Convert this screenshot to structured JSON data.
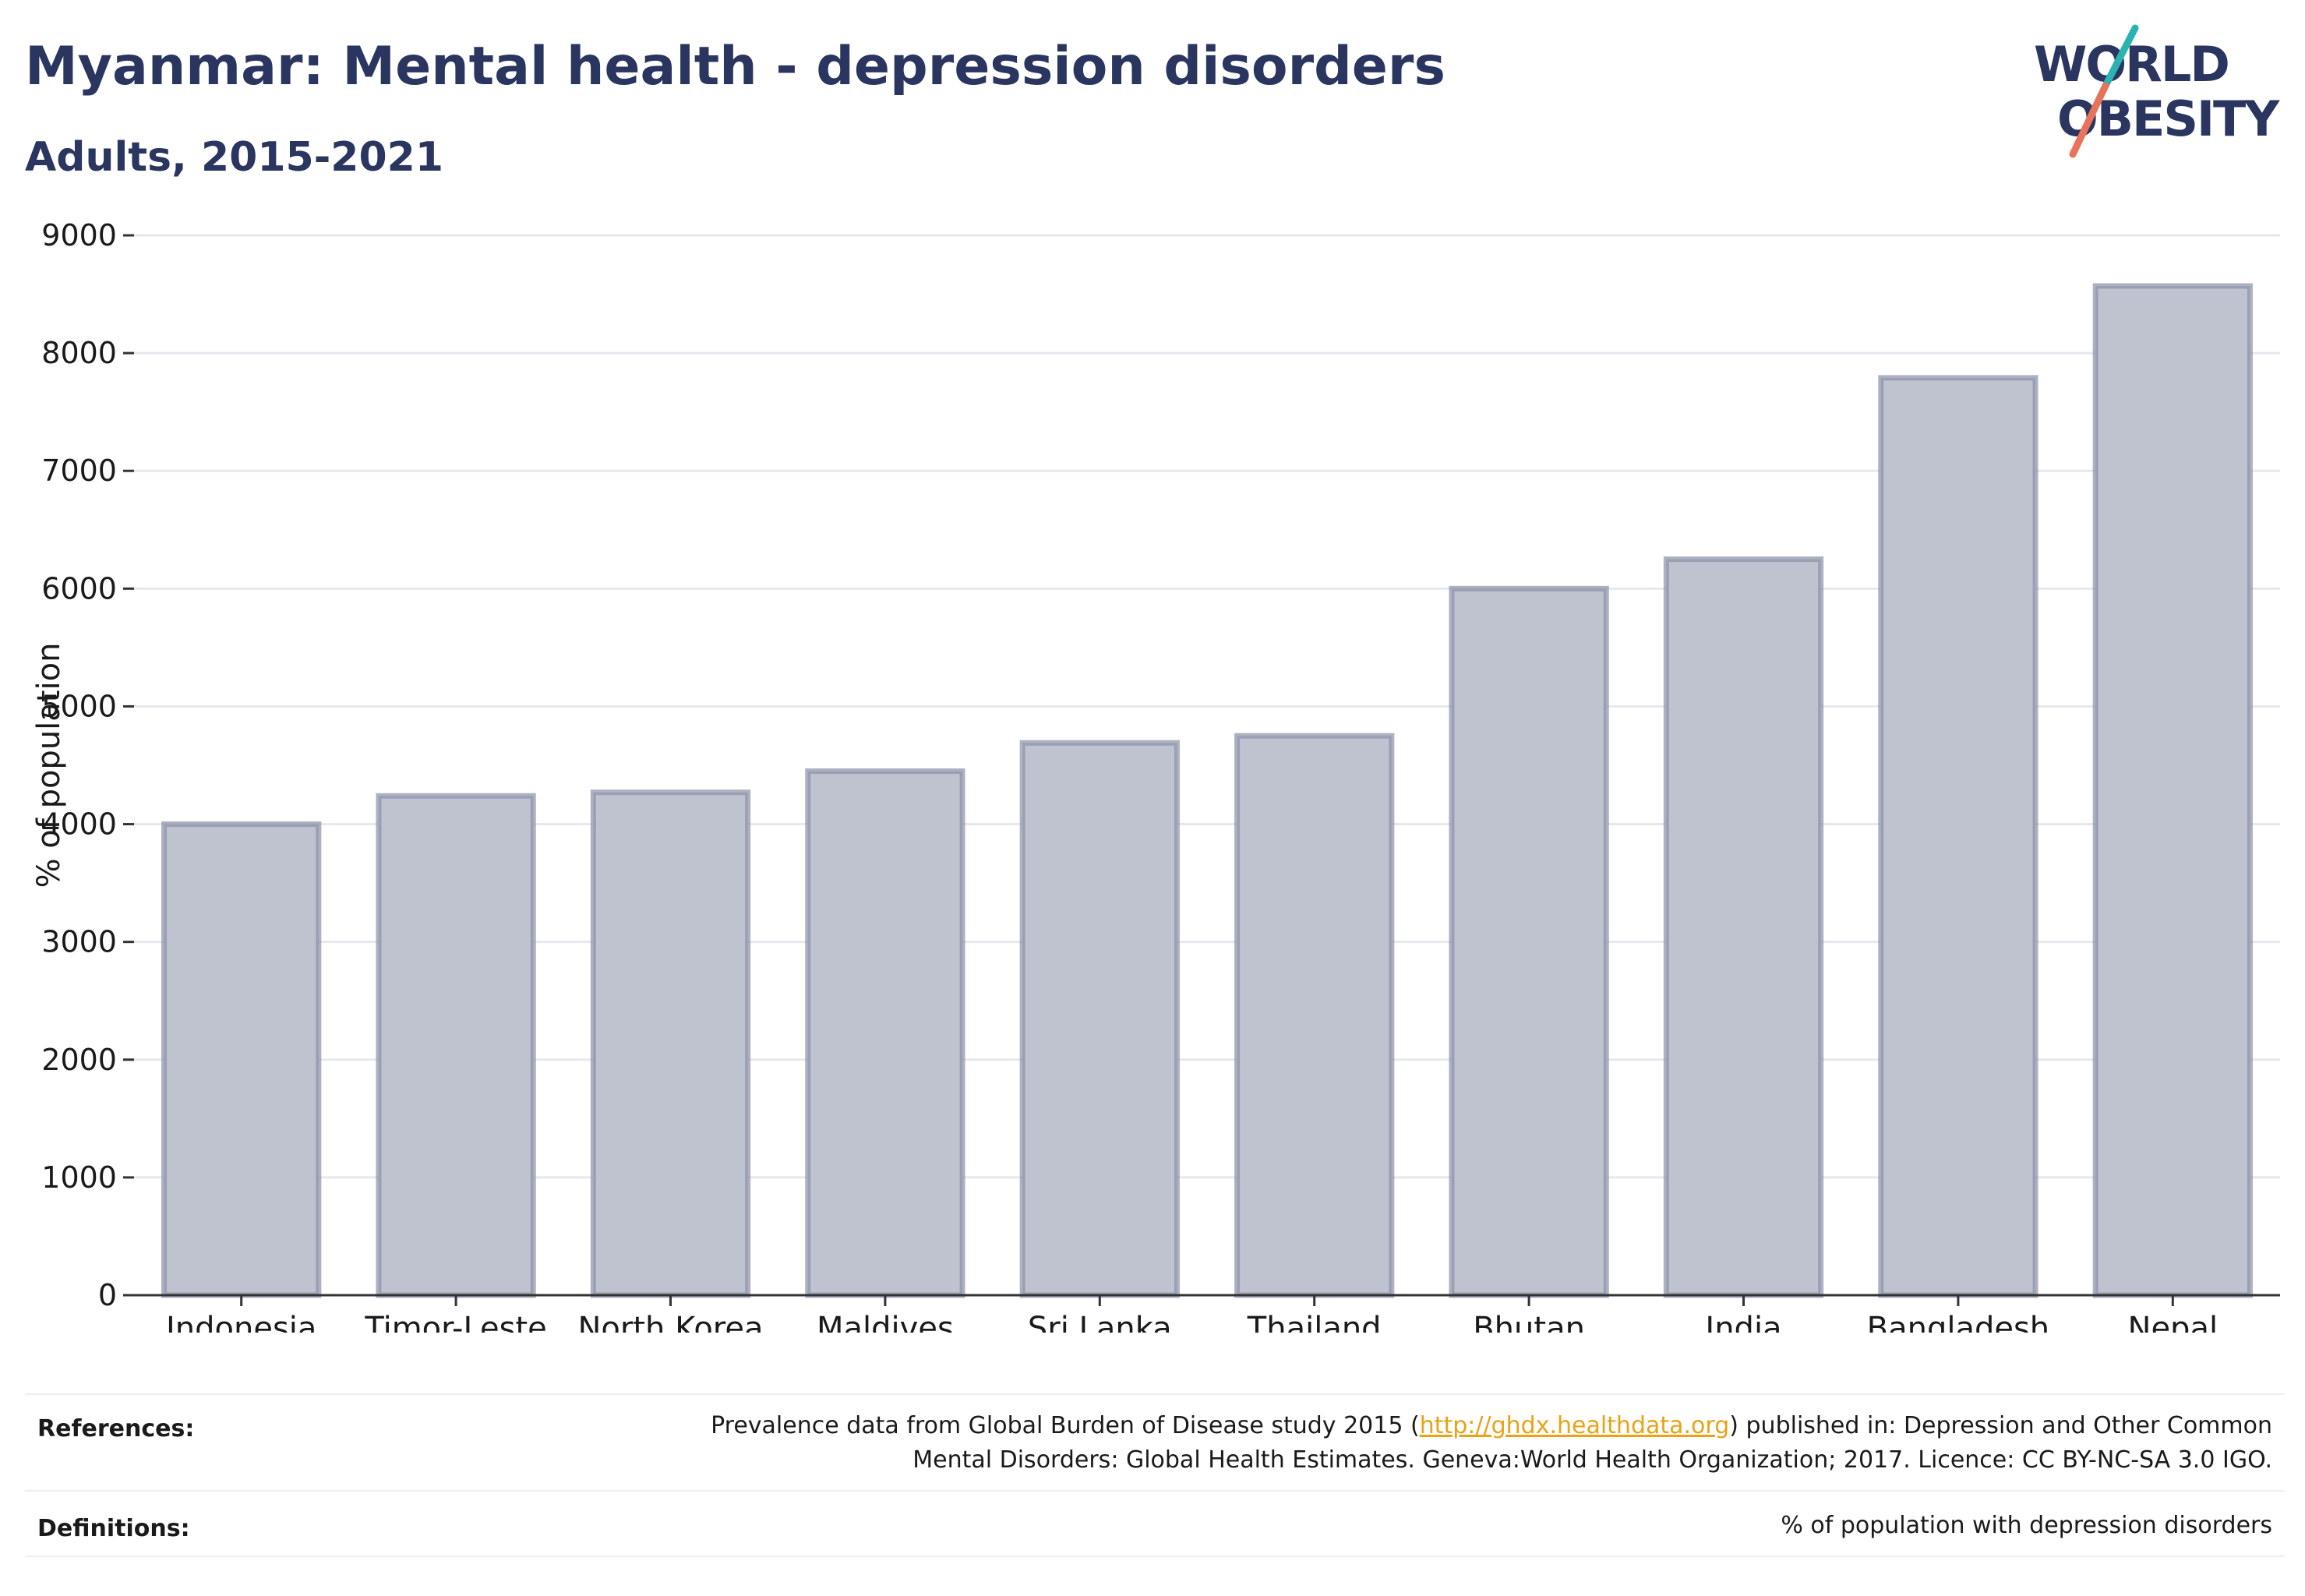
{
  "header": {
    "title": "Myanmar: Mental health - depression disorders",
    "subtitle": "Adults, 2015-2021"
  },
  "logo": {
    "line1": "WORLD",
    "line2": "OBESITY",
    "colors": {
      "text": "#2a3560",
      "slash_top": "#2ab3b1",
      "slash_bottom": "#e8735a"
    }
  },
  "colors": {
    "bar_fill": "#bfc3cf",
    "bar_stroke": "#8a90a8",
    "grid": "#e6e8ee",
    "axis": "#333333",
    "link": "#e8a317"
  },
  "chart_data": {
    "type": "bar",
    "categories": [
      "Indonesia",
      "Timor-Leste",
      "North Korea",
      "Maldives",
      "Sri Lanka",
      "Thailand",
      "Bhutan",
      "India",
      "Bangladesh",
      "Nepal"
    ],
    "values": [
      4000,
      4240,
      4270,
      4450,
      4690,
      4750,
      6000,
      6250,
      7790,
      8570
    ],
    "ylabel": "% of population",
    "xlabel": "",
    "ylim": [
      0,
      9000
    ],
    "yticks": [
      0,
      1000,
      2000,
      3000,
      4000,
      5000,
      6000,
      7000,
      8000,
      9000
    ],
    "grid": true
  },
  "footer": {
    "references_label": "References:",
    "references_pre": "Prevalence data from Global Burden of Disease study 2015 (",
    "references_link": "http://ghdx.healthdata.org",
    "references_post": ") published in: Depression and Other Common",
    "references_line2": "Mental Disorders: Global Health Estimates. Geneva:World Health Organization; 2017. Licence: CC BY-NC-SA 3.0 IGO.",
    "definitions_label": "Definitions:",
    "definitions_text": "% of population with depression disorders"
  }
}
